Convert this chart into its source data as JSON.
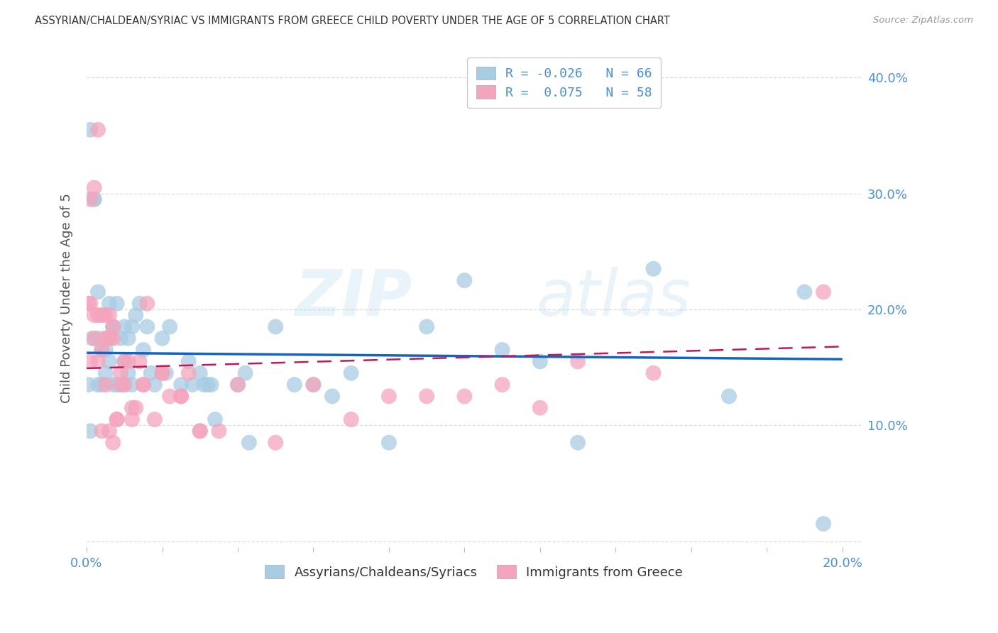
{
  "title": "ASSYRIAN/CHALDEAN/SYRIAC VS IMMIGRANTS FROM GREECE CHILD POVERTY UNDER THE AGE OF 5 CORRELATION CHART",
  "source": "Source: ZipAtlas.com",
  "ylabel_label": "Child Poverty Under the Age of 5",
  "xlim": [
    0.0,
    0.205
  ],
  "ylim": [
    -0.005,
    0.425
  ],
  "color_blue": "#a8cce4",
  "color_pink": "#f4a4bc",
  "trend_blue": "#1565c0",
  "trend_pink": "#c2185b",
  "R_blue": -0.026,
  "N_blue": 66,
  "R_pink": 0.075,
  "N_pink": 58,
  "legend_label_blue": "Assyrians/Chaldeans/Syriacs",
  "legend_label_pink": "Immigrants from Greece",
  "watermark_zip": "ZIP",
  "watermark_atlas": "atlas",
  "bg_color": "#ffffff",
  "grid_color": "#dddddd",
  "tick_color": "#4a90d9",
  "title_color": "#333333",
  "source_color": "#999999",
  "blue_x": [
    0.001,
    0.0015,
    0.002,
    0.002,
    0.003,
    0.003,
    0.003,
    0.004,
    0.004,
    0.005,
    0.005,
    0.005,
    0.006,
    0.006,
    0.006,
    0.007,
    0.007,
    0.007,
    0.008,
    0.008,
    0.009,
    0.009,
    0.01,
    0.01,
    0.01,
    0.011,
    0.011,
    0.012,
    0.012,
    0.013,
    0.014,
    0.015,
    0.016,
    0.017,
    0.018,
    0.02,
    0.021,
    0.022,
    0.025,
    0.027,
    0.028,
    0.03,
    0.031,
    0.032,
    0.033,
    0.034,
    0.04,
    0.042,
    0.043,
    0.05,
    0.055,
    0.06,
    0.065,
    0.07,
    0.08,
    0.09,
    0.1,
    0.11,
    0.12,
    0.13,
    0.15,
    0.17,
    0.19,
    0.195,
    0.0005,
    0.001
  ],
  "blue_y": [
    0.355,
    0.175,
    0.295,
    0.295,
    0.135,
    0.175,
    0.215,
    0.135,
    0.165,
    0.145,
    0.175,
    0.165,
    0.175,
    0.155,
    0.205,
    0.185,
    0.135,
    0.185,
    0.205,
    0.135,
    0.175,
    0.135,
    0.155,
    0.185,
    0.135,
    0.175,
    0.145,
    0.185,
    0.135,
    0.195,
    0.205,
    0.165,
    0.185,
    0.145,
    0.135,
    0.175,
    0.145,
    0.185,
    0.135,
    0.155,
    0.135,
    0.145,
    0.135,
    0.135,
    0.135,
    0.105,
    0.135,
    0.145,
    0.085,
    0.185,
    0.135,
    0.135,
    0.125,
    0.145,
    0.085,
    0.185,
    0.225,
    0.165,
    0.155,
    0.085,
    0.235,
    0.125,
    0.215,
    0.015,
    0.135,
    0.095
  ],
  "pink_x": [
    0.0005,
    0.001,
    0.001,
    0.002,
    0.002,
    0.003,
    0.003,
    0.004,
    0.004,
    0.005,
    0.005,
    0.006,
    0.006,
    0.007,
    0.007,
    0.008,
    0.009,
    0.01,
    0.011,
    0.012,
    0.013,
    0.014,
    0.015,
    0.016,
    0.018,
    0.02,
    0.022,
    0.025,
    0.027,
    0.03,
    0.035,
    0.04,
    0.05,
    0.06,
    0.07,
    0.08,
    0.09,
    0.1,
    0.11,
    0.12,
    0.13,
    0.15,
    0.195,
    0.001,
    0.002,
    0.003,
    0.004,
    0.005,
    0.006,
    0.007,
    0.008,
    0.009,
    0.01,
    0.012,
    0.015,
    0.02,
    0.025,
    0.03
  ],
  "pink_y": [
    0.205,
    0.205,
    0.295,
    0.305,
    0.175,
    0.355,
    0.195,
    0.195,
    0.095,
    0.195,
    0.135,
    0.195,
    0.095,
    0.175,
    0.085,
    0.105,
    0.145,
    0.135,
    0.155,
    0.105,
    0.115,
    0.155,
    0.135,
    0.205,
    0.105,
    0.145,
    0.125,
    0.125,
    0.145,
    0.095,
    0.095,
    0.135,
    0.085,
    0.135,
    0.105,
    0.125,
    0.125,
    0.125,
    0.135,
    0.115,
    0.155,
    0.145,
    0.215,
    0.155,
    0.195,
    0.155,
    0.165,
    0.175,
    0.175,
    0.185,
    0.105,
    0.135,
    0.155,
    0.115,
    0.135,
    0.145,
    0.125,
    0.095
  ]
}
